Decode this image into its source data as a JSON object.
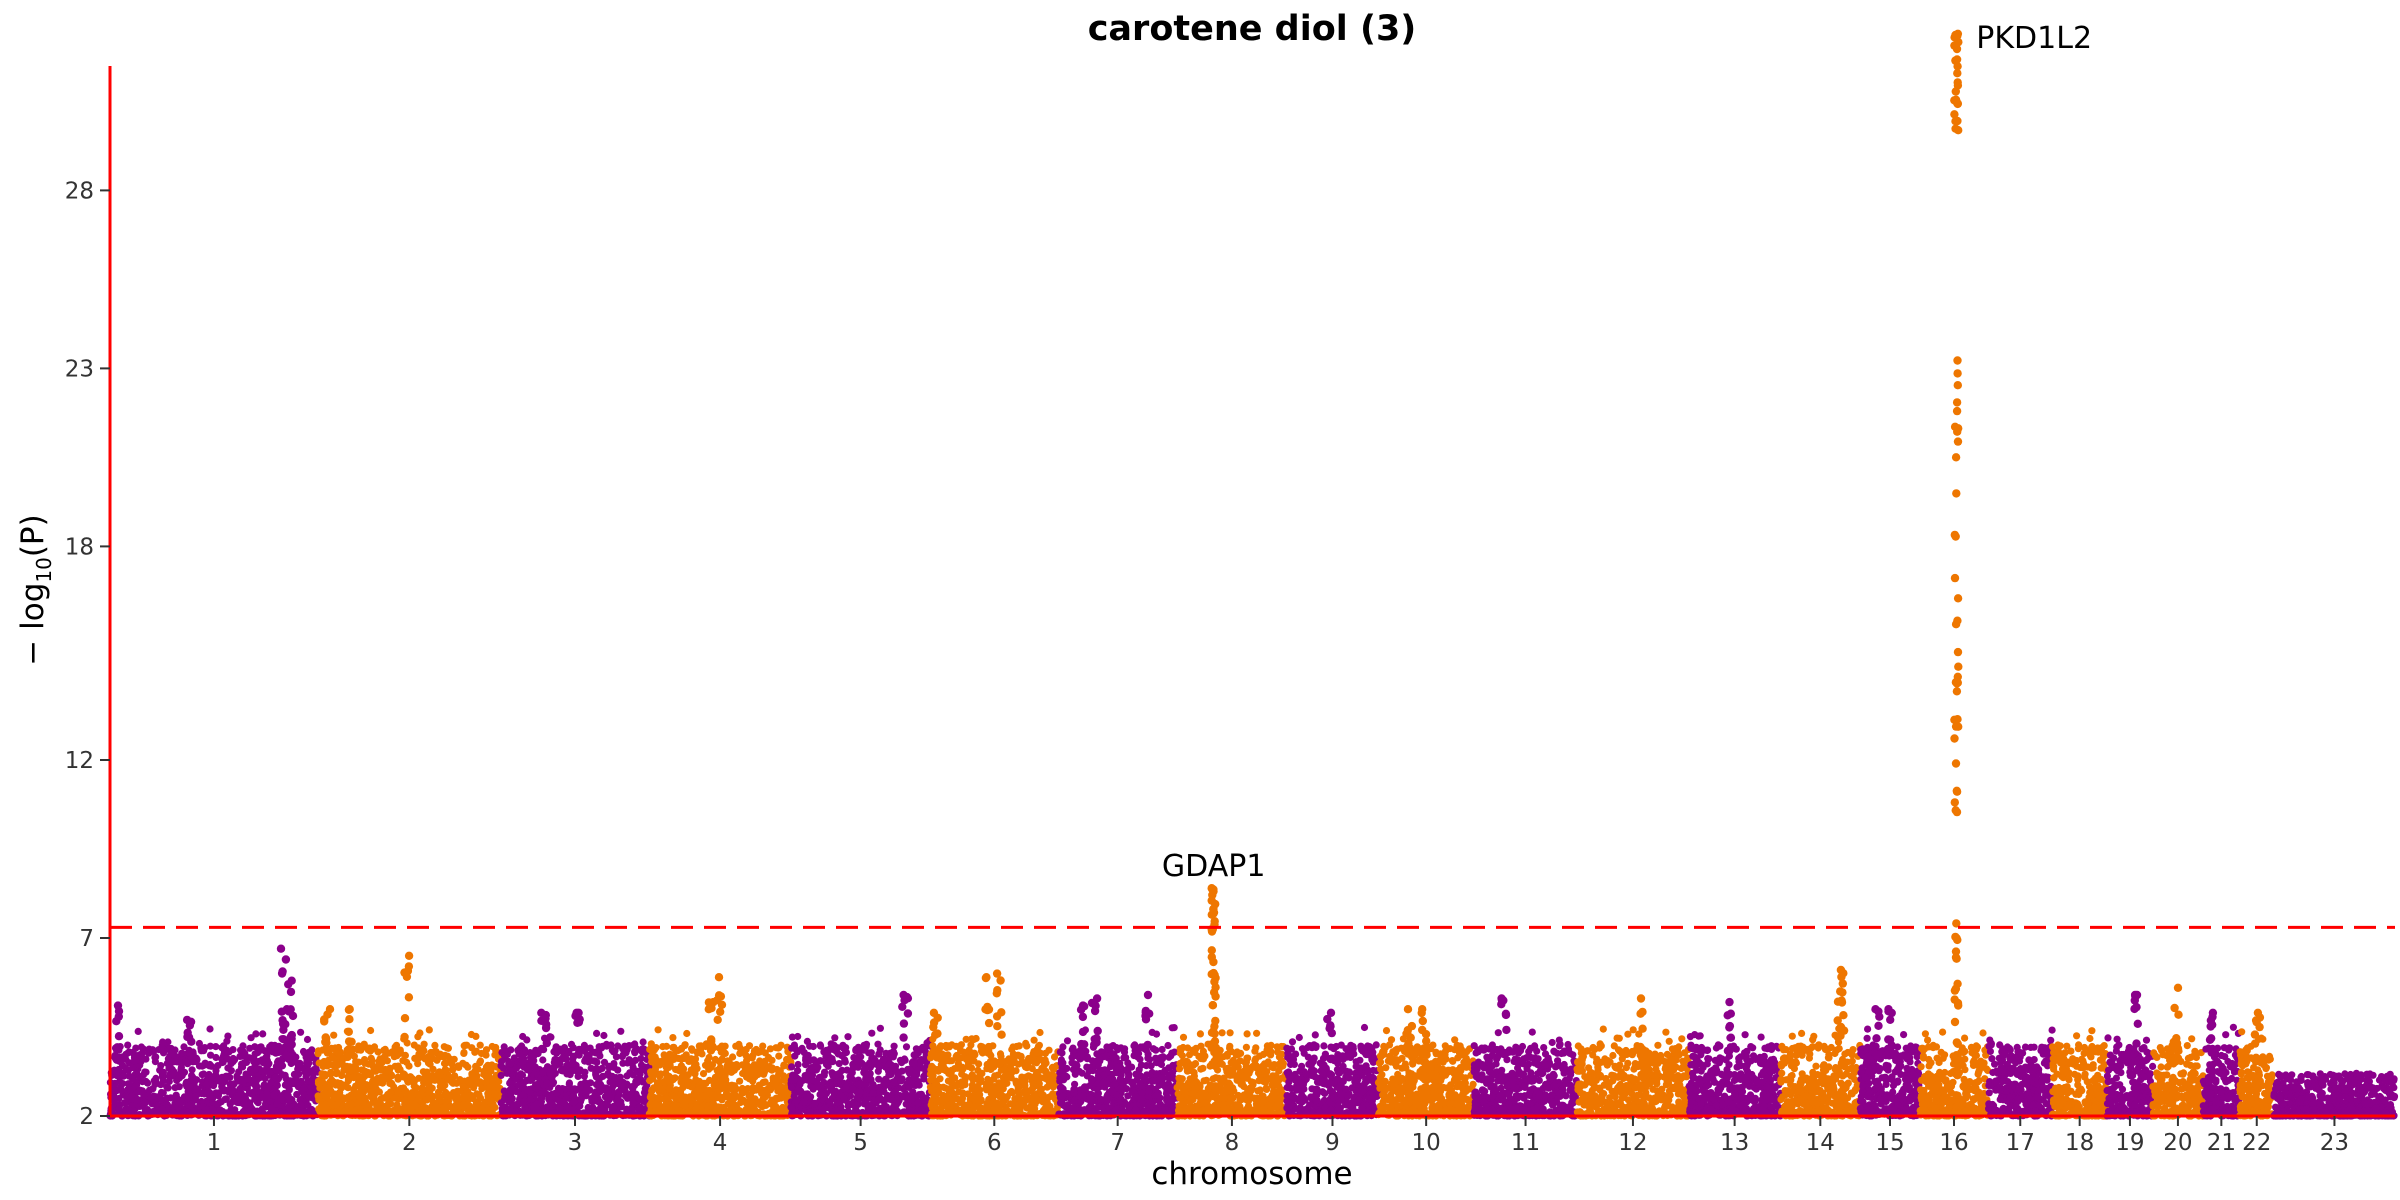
{
  "chart_data": {
    "type": "scatter",
    "subtype": "manhattan",
    "title": "carotene diol (3)",
    "xlabel": "chromosome",
    "ylabel_base": "− log",
    "ylabel_sub": "10",
    "ylabel_arg": "(P)",
    "ylim": [
      2,
      32.5
    ],
    "yticks": [
      2,
      7,
      12,
      18,
      23,
      28
    ],
    "significance_threshold": 7.3,
    "colors": {
      "odd": "#8B008B",
      "even": "#EE7600",
      "threshold": "#FF0000",
      "axis": "#FF0000"
    },
    "chromosomes": [
      {
        "label": "1",
        "start": 0,
        "end": 0.091
      },
      {
        "label": "2",
        "start": 0.091,
        "end": 0.171
      },
      {
        "label": "3",
        "start": 0.171,
        "end": 0.236
      },
      {
        "label": "4",
        "start": 0.236,
        "end": 0.298
      },
      {
        "label": "5",
        "start": 0.298,
        "end": 0.359
      },
      {
        "label": "6",
        "start": 0.359,
        "end": 0.415
      },
      {
        "label": "7",
        "start": 0.415,
        "end": 0.467
      },
      {
        "label": "8",
        "start": 0.467,
        "end": 0.515
      },
      {
        "label": "9",
        "start": 0.515,
        "end": 0.555
      },
      {
        "label": "10",
        "start": 0.555,
        "end": 0.597
      },
      {
        "label": "11",
        "start": 0.597,
        "end": 0.642
      },
      {
        "label": "12",
        "start": 0.642,
        "end": 0.691
      },
      {
        "label": "13",
        "start": 0.691,
        "end": 0.731
      },
      {
        "label": "14",
        "start": 0.731,
        "end": 0.766
      },
      {
        "label": "15",
        "start": 0.766,
        "end": 0.792
      },
      {
        "label": "16",
        "start": 0.792,
        "end": 0.822
      },
      {
        "label": "17",
        "start": 0.822,
        "end": 0.85
      },
      {
        "label": "18",
        "start": 0.85,
        "end": 0.874
      },
      {
        "label": "19",
        "start": 0.874,
        "end": 0.894
      },
      {
        "label": "20",
        "start": 0.894,
        "end": 0.916
      },
      {
        "label": "21",
        "start": 0.916,
        "end": 0.932
      },
      {
        "label": "22",
        "start": 0.932,
        "end": 0.947
      },
      {
        "label": "23",
        "start": 0.947,
        "end": 1.0
      }
    ],
    "peaks": [
      {
        "chrom": "1",
        "pos": 0.003,
        "max": 5.1
      },
      {
        "chrom": "1",
        "pos": 0.035,
        "max": 4.7
      },
      {
        "chrom": "1",
        "pos": 0.077,
        "max": 5.0
      },
      {
        "chrom": "1",
        "pos": 0.076,
        "max": 6.7
      },
      {
        "chrom": "1",
        "pos": 0.079,
        "max": 5.8
      },
      {
        "chrom": "2",
        "pos": 0.13,
        "max": 6.5
      },
      {
        "chrom": "2",
        "pos": 0.095,
        "max": 5.0
      },
      {
        "chrom": "2",
        "pos": 0.105,
        "max": 5.0
      },
      {
        "chrom": "3",
        "pos": 0.19,
        "max": 4.9
      },
      {
        "chrom": "3",
        "pos": 0.205,
        "max": 4.9
      },
      {
        "chrom": "4",
        "pos": 0.267,
        "max": 5.9
      },
      {
        "chrom": "4",
        "pos": 0.263,
        "max": 5.2
      },
      {
        "chrom": "5",
        "pos": 0.348,
        "max": 5.4
      },
      {
        "chrom": "6",
        "pos": 0.361,
        "max": 4.9
      },
      {
        "chrom": "6",
        "pos": 0.384,
        "max": 5.9
      },
      {
        "chrom": "6",
        "pos": 0.389,
        "max": 6.0
      },
      {
        "chrom": "7",
        "pos": 0.426,
        "max": 5.1
      },
      {
        "chrom": "7",
        "pos": 0.431,
        "max": 5.3
      },
      {
        "chrom": "7",
        "pos": 0.454,
        "max": 5.4
      },
      {
        "chrom": "8",
        "pos": 0.483,
        "max": 8.4,
        "label": "GDAP1"
      },
      {
        "chrom": "9",
        "pos": 0.534,
        "max": 4.9
      },
      {
        "chrom": "10",
        "pos": 0.569,
        "max": 5.0
      },
      {
        "chrom": "10",
        "pos": 0.575,
        "max": 5.0
      },
      {
        "chrom": "11",
        "pos": 0.61,
        "max": 5.3
      },
      {
        "chrom": "12",
        "pos": 0.671,
        "max": 5.3
      },
      {
        "chrom": "13",
        "pos": 0.709,
        "max": 5.2
      },
      {
        "chrom": "14",
        "pos": 0.758,
        "max": 6.1
      },
      {
        "chrom": "14",
        "pos": 0.757,
        "max": 5.5
      },
      {
        "chrom": "15",
        "pos": 0.773,
        "max": 5.0
      },
      {
        "chrom": "15",
        "pos": 0.779,
        "max": 5.0
      },
      {
        "chrom": "16",
        "pos": 0.808,
        "max": 32.4,
        "label": "PKD1L2"
      },
      {
        "chrom": "19",
        "pos": 0.887,
        "max": 5.4
      },
      {
        "chrom": "20",
        "pos": 0.904,
        "max": 5.6
      },
      {
        "chrom": "21",
        "pos": 0.92,
        "max": 4.9
      },
      {
        "chrom": "22",
        "pos": 0.94,
        "max": 4.9
      }
    ]
  }
}
